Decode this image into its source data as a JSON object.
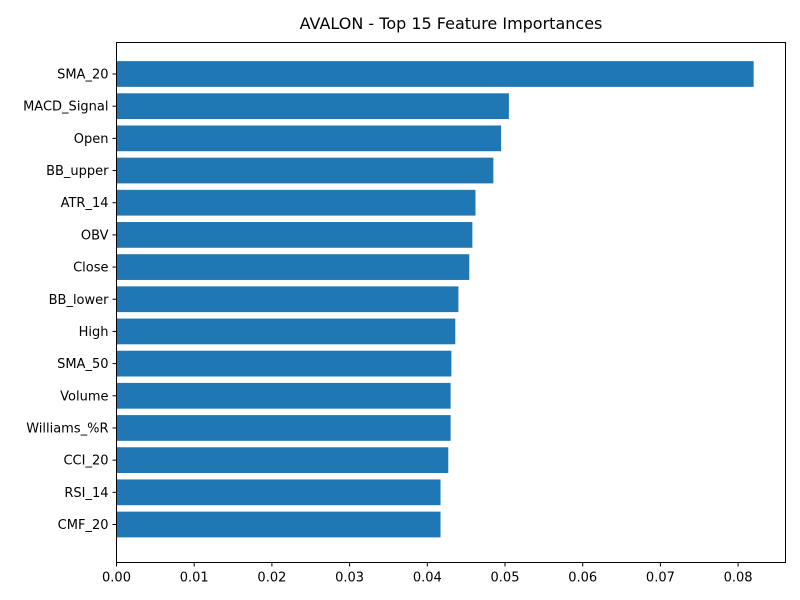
{
  "chart_data": {
    "type": "bar",
    "orientation": "horizontal",
    "title": "AVALON - Top 15 Feature Importances",
    "xlabel": "",
    "ylabel": "",
    "categories": [
      "SMA_20",
      "MACD_Signal",
      "Open",
      "BB_upper",
      "ATR_14",
      "OBV",
      "Close",
      "BB_lower",
      "High",
      "SMA_50",
      "Volume",
      "Williams_%R",
      "CCI_20",
      "RSI_14",
      "CMF_20"
    ],
    "values": [
      0.082,
      0.0505,
      0.0495,
      0.0485,
      0.0462,
      0.0458,
      0.0454,
      0.044,
      0.0436,
      0.0431,
      0.043,
      0.043,
      0.0427,
      0.0417,
      0.0417
    ],
    "xlim": [
      0.0,
      0.0861
    ],
    "xticks": [
      "0.00",
      "0.01",
      "0.02",
      "0.03",
      "0.04",
      "0.05",
      "0.06",
      "0.07",
      "0.08"
    ],
    "bar_color": "#1f77b4",
    "grid": false,
    "legend": "none"
  }
}
